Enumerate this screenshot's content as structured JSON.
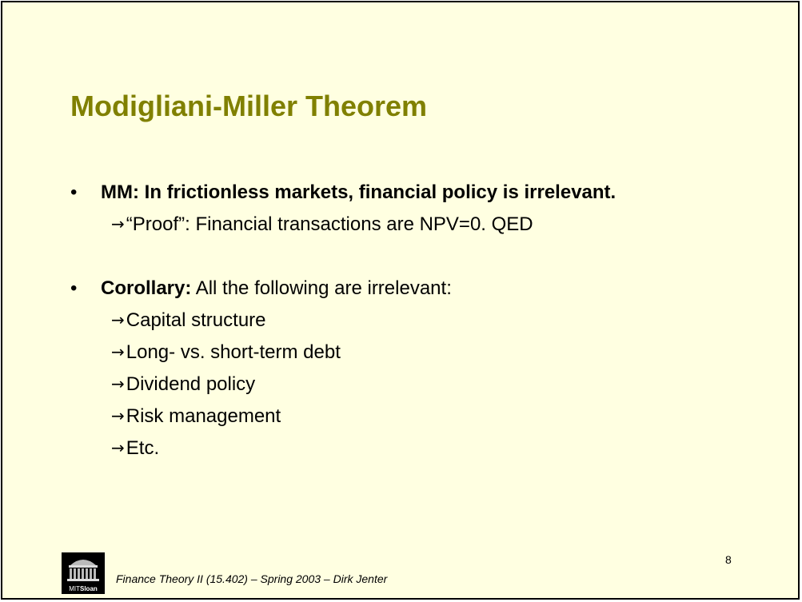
{
  "slide": {
    "title": "Modigliani-Miller Theorem",
    "bullet_symbol": "•",
    "arrow_symbol": "→",
    "bullets": [
      {
        "text_bold": "MM: In frictionless markets, financial policy is irrelevant.",
        "text_rest": "",
        "subitems": [
          "“Proof”: Financial transactions are NPV=0. QED"
        ]
      },
      {
        "text_bold": "Corollary:",
        "text_rest": " All the following are irrelevant:",
        "subitems": [
          "Capital structure",
          "Long- vs. short-term debt",
          "Dividend policy",
          "Risk management",
          "Etc."
        ]
      }
    ],
    "footer": "Finance Theory II (15.402) – Spring 2003 – Dirk Jenter",
    "page_number": "8",
    "logo": {
      "text_light": "MIT",
      "text_bold": "Sloan"
    }
  },
  "colors": {
    "background": "#ffffe1",
    "title": "#808000",
    "border": "#000000"
  }
}
